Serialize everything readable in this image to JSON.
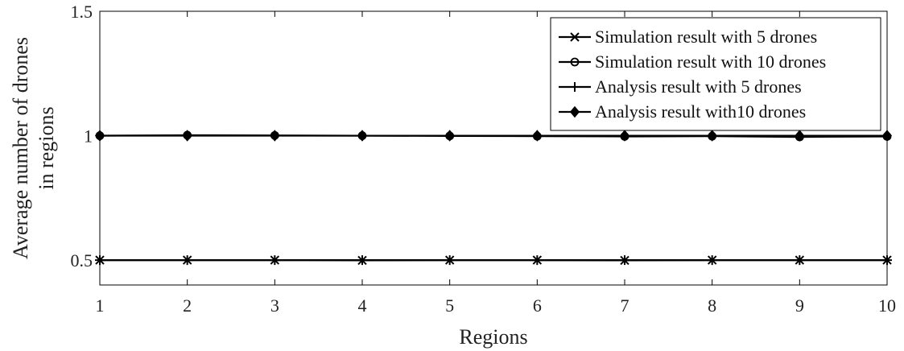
{
  "chart_data": {
    "type": "line",
    "title": "",
    "xlabel": "Regions",
    "ylabel_lines": [
      "Average number of drones",
      "in regions"
    ],
    "x": [
      1,
      2,
      3,
      4,
      5,
      6,
      7,
      8,
      9,
      10
    ],
    "xlim": [
      1,
      10
    ],
    "ylim": [
      0.4,
      1.5
    ],
    "x_ticks": [
      1,
      2,
      3,
      4,
      5,
      6,
      7,
      8,
      9,
      10
    ],
    "y_ticks": [
      0.5,
      1,
      1.5
    ],
    "y_tick_labels": [
      "0.5",
      "1",
      "1.5"
    ],
    "grid": false,
    "legend_position": "top-right",
    "line_color": "#000000",
    "series": [
      {
        "name": "Simulation result with 5 drones",
        "marker": "x",
        "values": [
          0.5,
          0.5,
          0.5,
          0.499,
          0.5,
          0.5,
          0.499,
          0.5,
          0.5,
          0.5
        ]
      },
      {
        "name": "Simulation result with 10 drones",
        "marker": "circle",
        "values": [
          1.0,
          1.002,
          1.001,
          1.0,
          0.999,
          0.998,
          0.997,
          0.998,
          0.995,
          0.997
        ]
      },
      {
        "name": "Analysis result with 5 drones",
        "marker": "plus",
        "values": [
          0.5,
          0.5,
          0.5,
          0.5,
          0.5,
          0.5,
          0.5,
          0.5,
          0.5,
          0.5
        ]
      },
      {
        "name": "Analysis result with10 drones",
        "marker": "diamond",
        "values": [
          1.0,
          1.0,
          1.0,
          1.0,
          1.0,
          1.0,
          1.0,
          1.0,
          1.0,
          1.0
        ]
      }
    ]
  }
}
